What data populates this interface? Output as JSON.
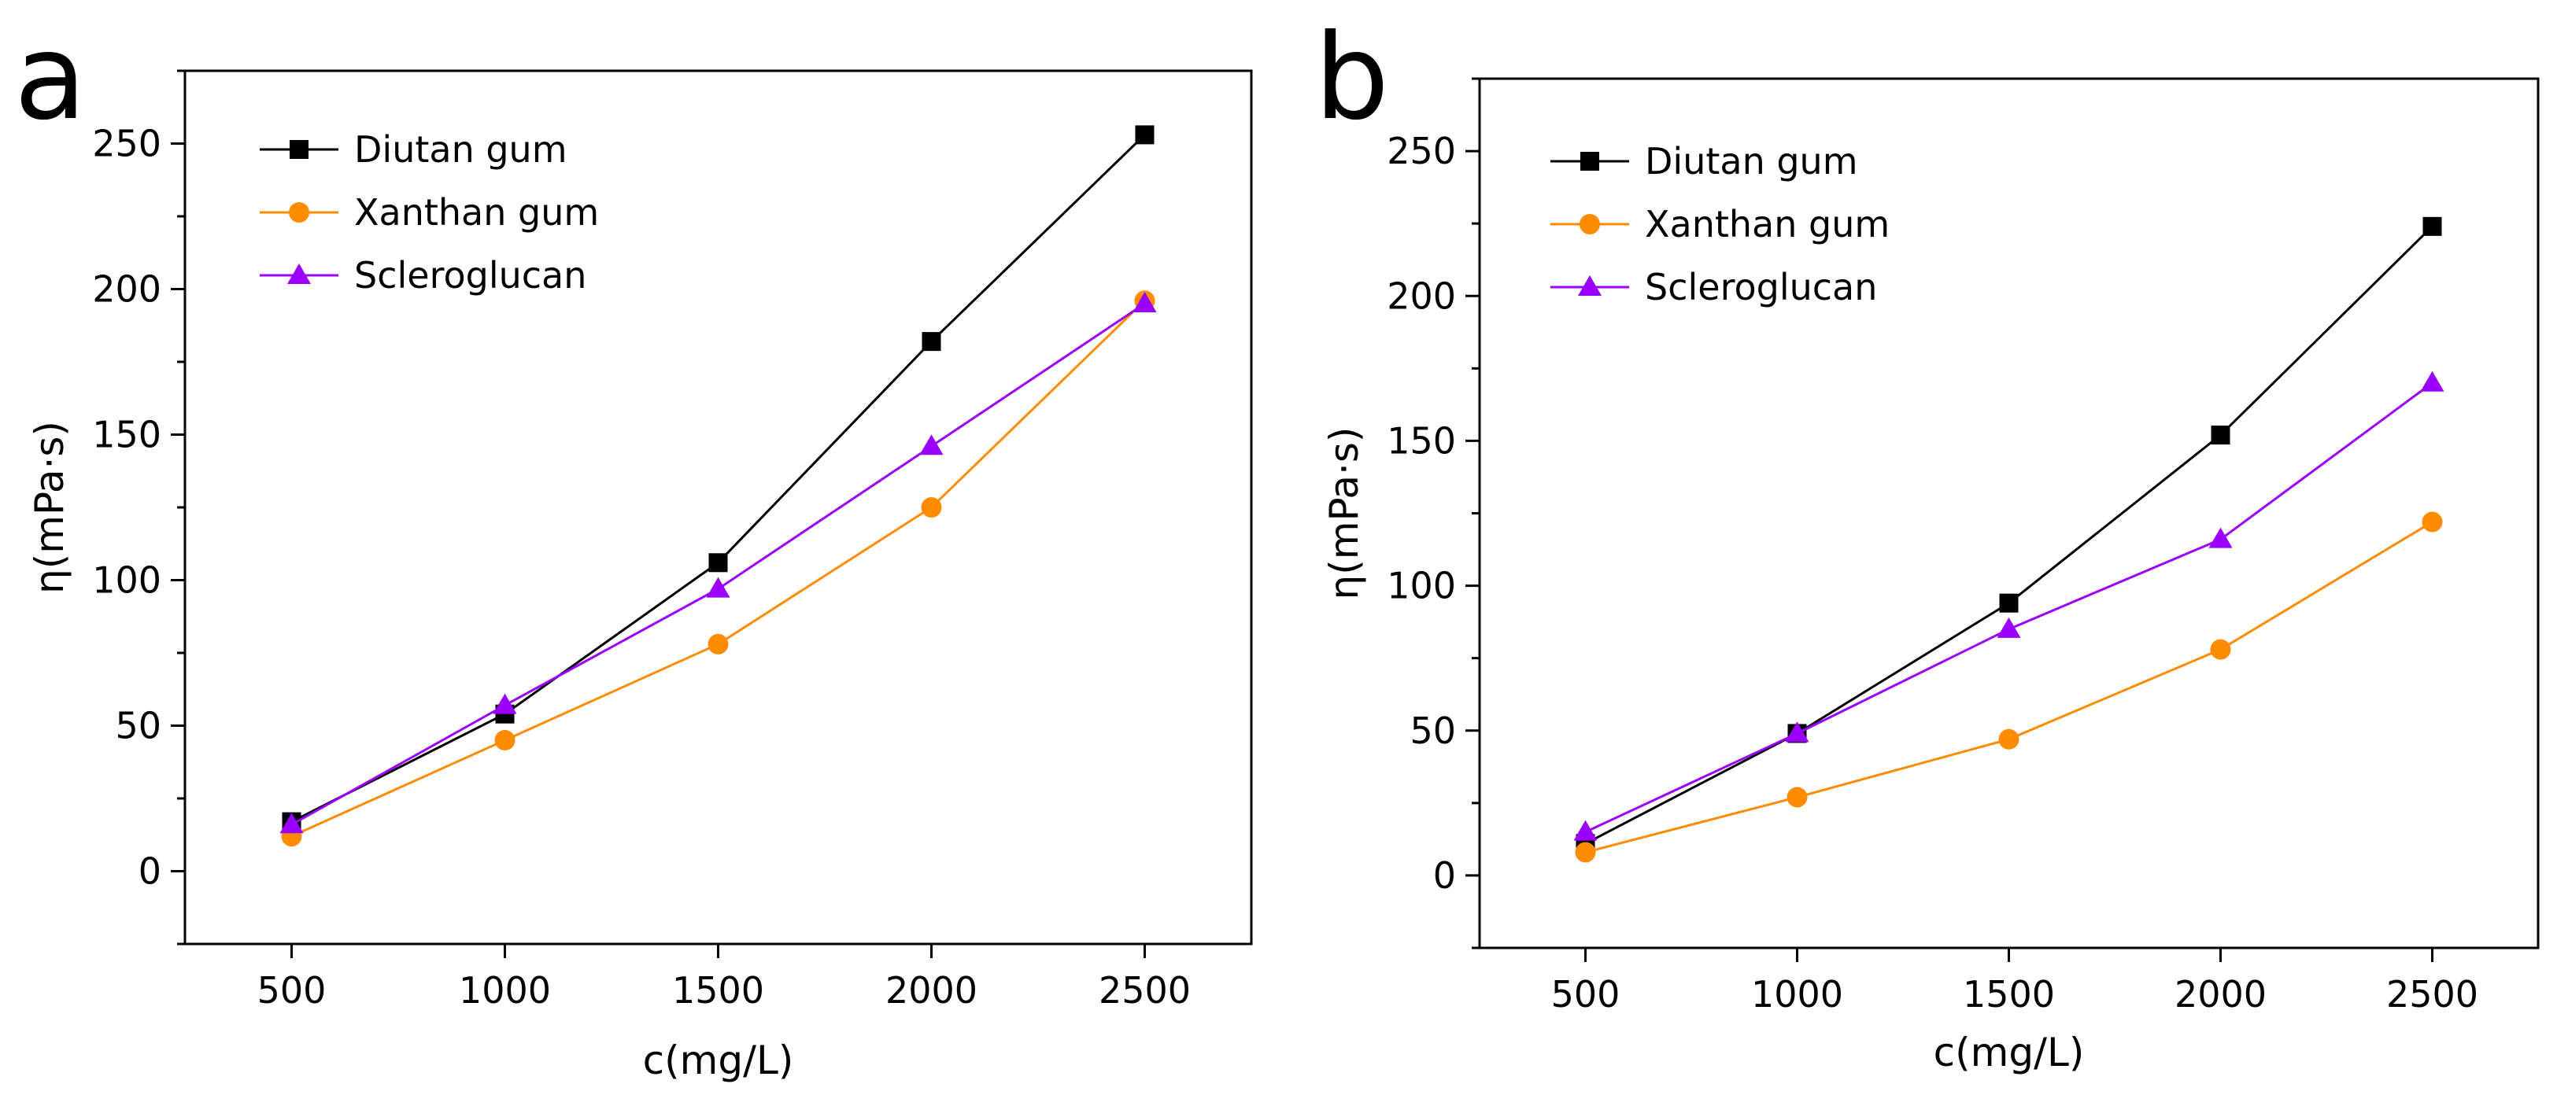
{
  "chart_data": [
    {
      "type": "line",
      "panel_label": "a",
      "xlabel": "c(mg/L)",
      "ylabel": "η(mPa·s)",
      "x": [
        500,
        1000,
        1500,
        2000,
        2500
      ],
      "xticks": [
        500,
        1000,
        1500,
        2000,
        2500
      ],
      "xlim": [
        250,
        2750
      ],
      "yticks": [
        0,
        50,
        100,
        150,
        200,
        250
      ],
      "ylim": [
        -25,
        275
      ],
      "legend_position": "top-left",
      "series": [
        {
          "name": "Diutan gum",
          "marker": "square",
          "color": "#000000",
          "values": [
            17,
            54,
            106,
            182,
            253
          ]
        },
        {
          "name": "Xanthan gum",
          "marker": "circle",
          "color": "#FF8C00",
          "values": [
            12,
            45,
            78,
            125,
            196
          ]
        },
        {
          "name": "Scleroglucan",
          "marker": "triangle",
          "color": "#9B00FF",
          "values": [
            16,
            57,
            97,
            146,
            195
          ]
        }
      ]
    },
    {
      "type": "line",
      "panel_label": "b",
      "xlabel": "c(mg/L)",
      "ylabel": "η(mPa·s)",
      "x": [
        500,
        1000,
        1500,
        2000,
        2500
      ],
      "xticks": [
        500,
        1000,
        1500,
        2000,
        2500
      ],
      "xlim": [
        250,
        2750
      ],
      "yticks": [
        0,
        50,
        100,
        150,
        200,
        250
      ],
      "ylim": [
        -25,
        275
      ],
      "legend_position": "top-left",
      "series": [
        {
          "name": "Diutan gum",
          "marker": "square",
          "color": "#000000",
          "values": [
            11,
            49,
            94,
            152,
            224
          ]
        },
        {
          "name": "Xanthan gum",
          "marker": "circle",
          "color": "#FF8C00",
          "values": [
            8,
            27,
            47,
            78,
            122
          ]
        },
        {
          "name": "Scleroglucan",
          "marker": "triangle",
          "color": "#9B00FF",
          "values": [
            15,
            49,
            85,
            116,
            170
          ]
        }
      ]
    }
  ]
}
